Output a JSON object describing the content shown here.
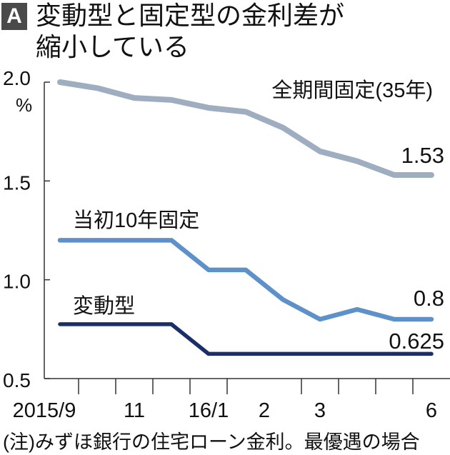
{
  "header": {
    "badge": "A",
    "title_line1": "変動型と固定型の金利差が",
    "title_line2": "縮小している"
  },
  "note": "(注)みずほ銀行の住宅ローン金利。最優遇の場合",
  "chart_data": {
    "type": "line",
    "title": "変動型と固定型の金利差が縮小している",
    "ylabel": "%",
    "ylim": [
      0.5,
      2.0
    ],
    "yticks": [
      "2.0",
      "1.5",
      "1.0",
      "0.5"
    ],
    "ytick_values": [
      2.0,
      1.5,
      1.0,
      0.5
    ],
    "x_tick_labels": [
      {
        "label": "2015/9",
        "at": 0
      },
      {
        "label": "11",
        "at": 2
      },
      {
        "label": "16/1",
        "at": 4
      },
      {
        "label": "2",
        "at": 5.5
      },
      {
        "label": "3",
        "at": 7
      },
      {
        "label": "6",
        "at": 10
      }
    ],
    "grid": false,
    "series": [
      {
        "name": "全期間固定(35年)",
        "color": "#9eaec0",
        "end_label": "1.53",
        "values": [
          2.0,
          1.97,
          1.92,
          1.91,
          1.87,
          1.85,
          1.77,
          1.65,
          1.6,
          1.53,
          1.53
        ]
      },
      {
        "name": "当初10年固定",
        "color": "#5e91c9",
        "end_label": "0.8",
        "values": [
          1.2,
          1.2,
          1.2,
          1.2,
          1.05,
          1.05,
          0.9,
          0.8,
          0.85,
          0.8,
          0.8
        ]
      },
      {
        "name": "変動型",
        "color": "#1c2e6a",
        "end_label": "0.625",
        "values": [
          0.775,
          0.775,
          0.775,
          0.775,
          0.625,
          0.625,
          0.625,
          0.625,
          0.625,
          0.625,
          0.625
        ]
      }
    ]
  }
}
